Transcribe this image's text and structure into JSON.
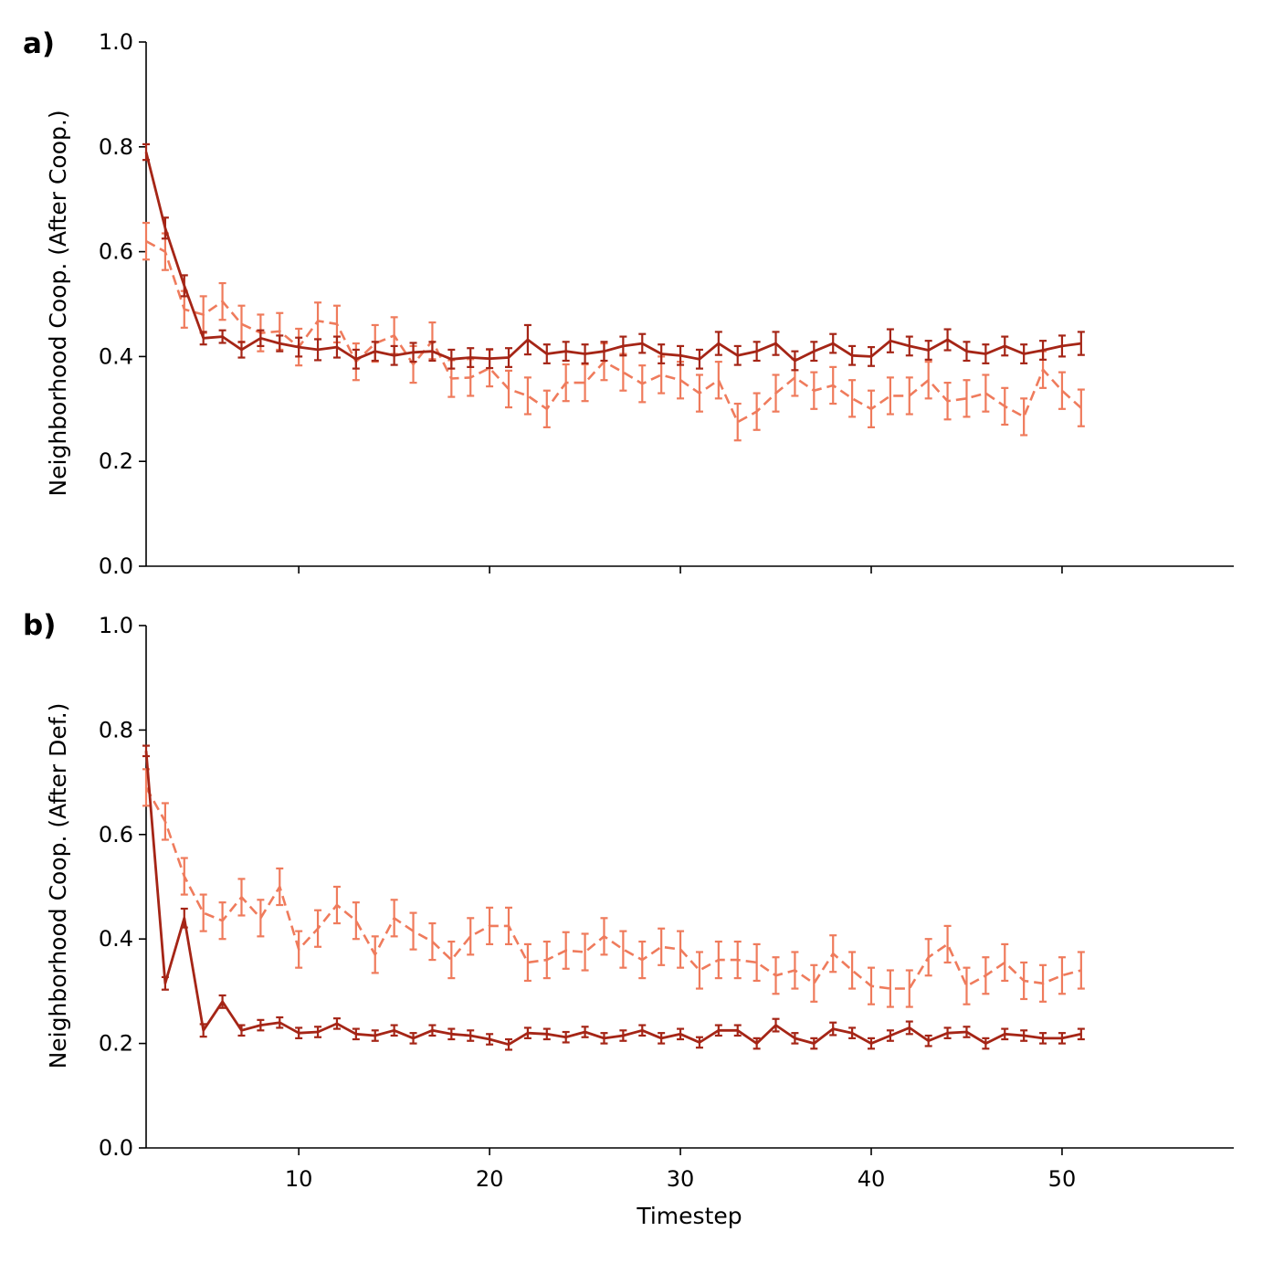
{
  "colors": {
    "solid": "#a52516",
    "dashed": "#ef7b5c"
  },
  "x_axis_label": "Timestep",
  "chart_data": [
    {
      "type": "line",
      "panel_label": "a)",
      "ylabel": "Neighborhood Coop. (After Coop.)",
      "xlim": [
        2,
        59
      ],
      "ylim": [
        0,
        1.0
      ],
      "xticks": [
        10,
        20,
        30,
        40,
        50
      ],
      "xtick_labels_shown": false,
      "yticks": [
        0.0,
        0.2,
        0.4,
        0.6,
        0.8,
        1.0
      ],
      "ytick_labels": [
        "0.0",
        "0.2",
        "0.4",
        "0.6",
        "0.8",
        "1.0"
      ],
      "grid": false,
      "legend": "none",
      "x": [
        2,
        3,
        4,
        5,
        6,
        7,
        8,
        9,
        10,
        11,
        12,
        13,
        14,
        15,
        16,
        17,
        18,
        19,
        20,
        21,
        22,
        23,
        24,
        25,
        26,
        27,
        28,
        29,
        30,
        31,
        32,
        33,
        34,
        35,
        36,
        37,
        38,
        39,
        40,
        41,
        42,
        43,
        44,
        45,
        46,
        47,
        48,
        49,
        50,
        51
      ],
      "series": [
        {
          "style": "solid",
          "values": [
            0.79,
            0.645,
            0.535,
            0.435,
            0.438,
            0.413,
            0.435,
            0.425,
            0.418,
            0.413,
            0.418,
            0.395,
            0.41,
            0.402,
            0.408,
            0.41,
            0.395,
            0.398,
            0.396,
            0.398,
            0.432,
            0.405,
            0.41,
            0.405,
            0.41,
            0.42,
            0.425,
            0.405,
            0.402,
            0.395,
            0.425,
            0.402,
            0.41,
            0.425,
            0.392,
            0.41,
            0.425,
            0.402,
            0.4,
            0.43,
            0.42,
            0.412,
            0.432,
            0.41,
            0.405,
            0.42,
            0.405,
            0.412,
            0.42,
            0.425
          ],
          "errors": [
            0.015,
            0.02,
            0.02,
            0.012,
            0.012,
            0.015,
            0.015,
            0.015,
            0.018,
            0.02,
            0.02,
            0.018,
            0.018,
            0.018,
            0.018,
            0.018,
            0.018,
            0.018,
            0.018,
            0.018,
            0.028,
            0.018,
            0.018,
            0.018,
            0.018,
            0.018,
            0.018,
            0.018,
            0.018,
            0.018,
            0.022,
            0.018,
            0.018,
            0.022,
            0.018,
            0.018,
            0.018,
            0.018,
            0.018,
            0.022,
            0.018,
            0.018,
            0.02,
            0.018,
            0.018,
            0.018,
            0.018,
            0.018,
            0.02,
            0.022
          ]
        },
        {
          "style": "dashed",
          "values": [
            0.62,
            0.6,
            0.49,
            0.48,
            0.505,
            0.462,
            0.445,
            0.448,
            0.418,
            0.468,
            0.462,
            0.39,
            0.425,
            0.44,
            0.385,
            0.43,
            0.358,
            0.36,
            0.378,
            0.338,
            0.325,
            0.3,
            0.35,
            0.35,
            0.39,
            0.37,
            0.348,
            0.365,
            0.355,
            0.33,
            0.355,
            0.275,
            0.295,
            0.33,
            0.36,
            0.335,
            0.345,
            0.32,
            0.3,
            0.325,
            0.325,
            0.355,
            0.315,
            0.32,
            0.33,
            0.305,
            0.285,
            0.375,
            0.335,
            0.302
          ]
        }
      ]
    },
    {
      "type": "line",
      "panel_label": "b)",
      "ylabel": "Neighborhood Coop. (After Def.)",
      "xlim": [
        2,
        59
      ],
      "ylim": [
        0,
        1.0
      ],
      "xticks": [
        10,
        20,
        30,
        40,
        50
      ],
      "xtick_labels": [
        "10",
        "20",
        "30",
        "40",
        "50"
      ],
      "xlabel": "Timestep",
      "yticks": [
        0.0,
        0.2,
        0.4,
        0.6,
        0.8,
        1.0
      ],
      "ytick_labels": [
        "0.0",
        "0.2",
        "0.4",
        "0.6",
        "0.8",
        "1.0"
      ],
      "grid": false,
      "legend": "none",
      "x": [
        2,
        3,
        4,
        5,
        6,
        7,
        8,
        9,
        10,
        11,
        12,
        13,
        14,
        15,
        16,
        17,
        18,
        19,
        20,
        21,
        22,
        23,
        24,
        25,
        26,
        27,
        28,
        29,
        30,
        31,
        32,
        33,
        34,
        35,
        36,
        37,
        38,
        39,
        40,
        41,
        42,
        43,
        44,
        45,
        46,
        47,
        48,
        49,
        50,
        51
      ],
      "series": [
        {
          "style": "solid",
          "values": [
            0.76,
            0.315,
            0.44,
            0.225,
            0.28,
            0.225,
            0.235,
            0.24,
            0.22,
            0.222,
            0.238,
            0.218,
            0.215,
            0.225,
            0.21,
            0.225,
            0.218,
            0.215,
            0.208,
            0.198,
            0.22,
            0.218,
            0.212,
            0.222,
            0.21,
            0.215,
            0.225,
            0.21,
            0.218,
            0.202,
            0.225,
            0.225,
            0.2,
            0.235,
            0.21,
            0.2,
            0.228,
            0.22,
            0.2,
            0.215,
            0.23,
            0.205,
            0.22,
            0.222,
            0.2,
            0.218,
            0.215,
            0.21,
            0.21,
            0.218
          ],
          "errors": [
            0.01,
            0.012,
            0.018,
            0.012,
            0.012,
            0.01,
            0.01,
            0.01,
            0.01,
            0.01,
            0.01,
            0.01,
            0.01,
            0.01,
            0.01,
            0.01,
            0.01,
            0.01,
            0.01,
            0.01,
            0.01,
            0.01,
            0.01,
            0.01,
            0.01,
            0.01,
            0.01,
            0.01,
            0.01,
            0.01,
            0.01,
            0.01,
            0.01,
            0.012,
            0.01,
            0.01,
            0.012,
            0.01,
            0.01,
            0.01,
            0.012,
            0.01,
            0.01,
            0.01,
            0.01,
            0.01,
            0.01,
            0.01,
            0.01,
            0.01
          ]
        },
        {
          "style": "dashed",
          "values": [
            0.69,
            0.625,
            0.52,
            0.45,
            0.435,
            0.48,
            0.44,
            0.5,
            0.38,
            0.42,
            0.465,
            0.435,
            0.37,
            0.44,
            0.415,
            0.395,
            0.36,
            0.405,
            0.425,
            0.425,
            0.355,
            0.36,
            0.378,
            0.375,
            0.405,
            0.38,
            0.36,
            0.385,
            0.38,
            0.34,
            0.36,
            0.36,
            0.355,
            0.33,
            0.34,
            0.315,
            0.372,
            0.34,
            0.31,
            0.305,
            0.305,
            0.365,
            0.39,
            0.31,
            0.33,
            0.355,
            0.32,
            0.315,
            0.33,
            0.34
          ]
        }
      ]
    }
  ]
}
